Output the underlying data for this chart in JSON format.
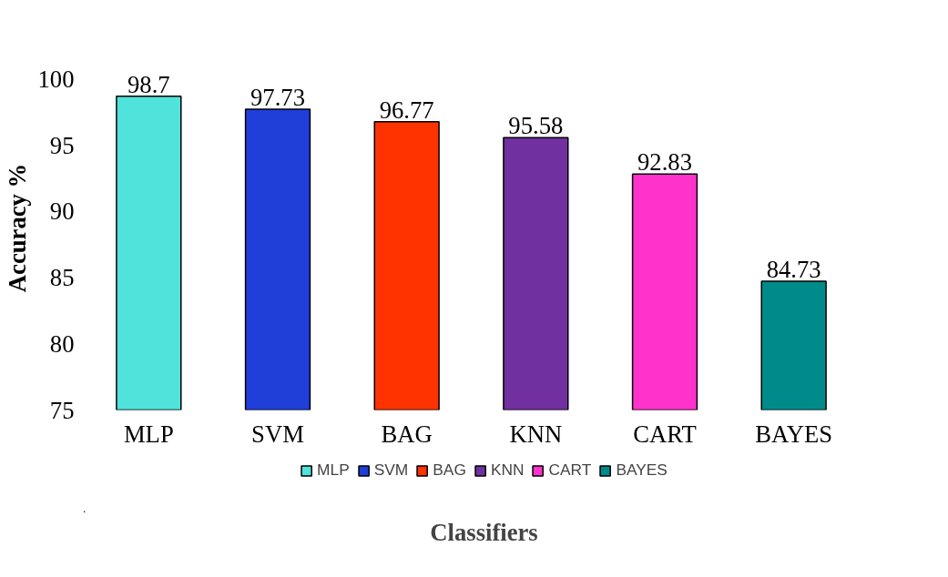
{
  "chart_data": {
    "type": "bar",
    "xlabel": "Classifiers",
    "ylabel": "Accuracy %",
    "categories": [
      "MLP",
      "SVM",
      "BAG",
      "KNN",
      "CART",
      "BAYES"
    ],
    "series": [
      {
        "name": "MLP",
        "color": "#4fe3dc",
        "values": [
          98.7,
          null,
          null,
          null,
          null,
          null
        ]
      },
      {
        "name": "SVM",
        "color": "#1f3fd8",
        "values": [
          null,
          97.73,
          null,
          null,
          null,
          null
        ]
      },
      {
        "name": "BAG",
        "color": "#ff3300",
        "values": [
          null,
          null,
          96.77,
          null,
          null,
          null
        ]
      },
      {
        "name": "KNN",
        "color": "#7030a0",
        "values": [
          null,
          null,
          null,
          95.58,
          null,
          null
        ]
      },
      {
        "name": "CART",
        "color": "#ff33cc",
        "values": [
          null,
          null,
          null,
          null,
          92.83,
          null
        ]
      },
      {
        "name": "BAYES",
        "color": "#008b8b",
        "values": [
          null,
          null,
          null,
          null,
          null,
          84.73
        ]
      }
    ],
    "ylim": [
      75,
      100
    ],
    "yticks": [
      75,
      80,
      85,
      90,
      95,
      100
    ],
    "data_labels": true,
    "grid": false,
    "legend": "bottom"
  }
}
